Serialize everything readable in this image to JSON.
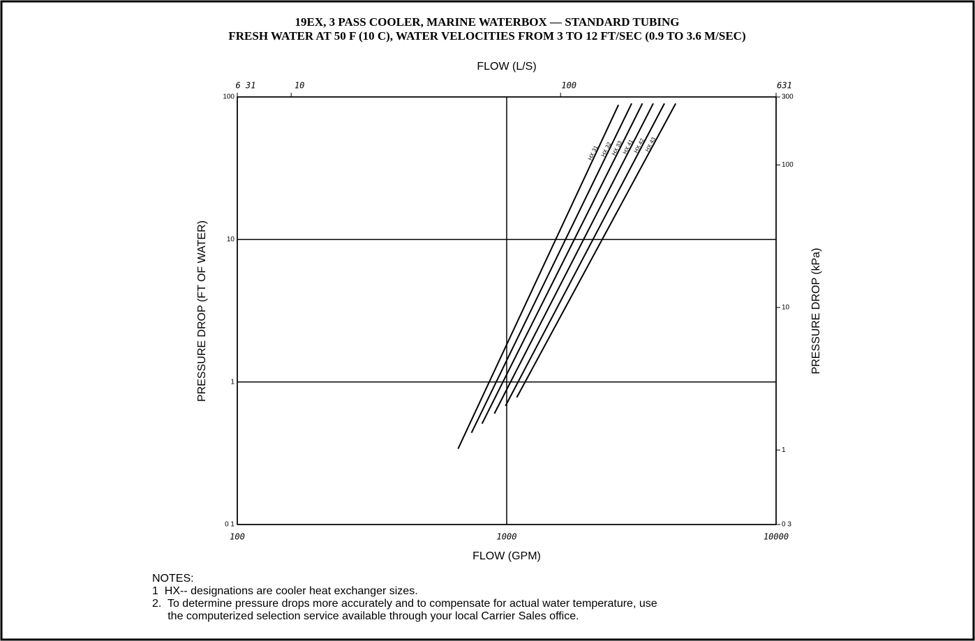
{
  "chart_data": {
    "type": "line",
    "title": "19EX, 3 PASS COOLER, MARINE WATERBOX — STANDARD TUBING",
    "subtitle": "FRESH WATER AT 50 F (10 C), WATER VELOCITIES FROM 3 TO 12 FT/SEC (0.9 TO 3.6 M/SEC)",
    "x_label": "FLOW (GPM)",
    "x2_label": "FLOW (L/S)",
    "y_label": "PRESSURE DROP (FT  OF WATER)",
    "y2_label": "PRESSURE DROP (kPa)",
    "log_x": true,
    "log_y": true,
    "grid": true,
    "color": "#000000",
    "xlim": [
      100,
      10000
    ],
    "xticks": [
      100,
      1000,
      10000
    ],
    "x2lim": [
      6.31,
      631
    ],
    "x2ticks": [
      {
        "value": 6.31,
        "label": "6 31"
      },
      10,
      100,
      631
    ],
    "ylim": [
      0.1,
      100
    ],
    "yticks": [
      {
        "value": 0.1,
        "label": "0 1"
      },
      1,
      10,
      100
    ],
    "y2lim": [
      0.3,
      300
    ],
    "y2ticks": [
      {
        "value": 0.3,
        "label": "0 3"
      },
      1,
      10,
      100,
      300
    ],
    "series": [
      {
        "name": "HX 31",
        "x": [
          660,
          2600
        ],
        "values": [
          0.34,
          88
        ]
      },
      {
        "name": "HX 32",
        "x": [
          740,
          2910
        ],
        "values": [
          0.44,
          90
        ]
      },
      {
        "name": "HX 33",
        "x": [
          810,
          3190
        ],
        "values": [
          0.51,
          90
        ]
      },
      {
        "name": "HX 41",
        "x": [
          900,
          3500
        ],
        "values": [
          0.6,
          90
        ]
      },
      {
        "name": "HX 42",
        "x": [
          990,
          3850
        ],
        "values": [
          0.68,
          90
        ]
      },
      {
        "name": "HX 43",
        "x": [
          1090,
          4240
        ],
        "values": [
          0.78,
          90
        ]
      }
    ]
  },
  "notes": {
    "heading": "NOTES:",
    "items": [
      "1  HX-- designations are cooler heat exchanger sizes.",
      "2.  To determine pressure drops more accurately and to compensate for actual water temperature, use",
      "     the computerized selection service available through your local Carrier Sales office."
    ]
  }
}
